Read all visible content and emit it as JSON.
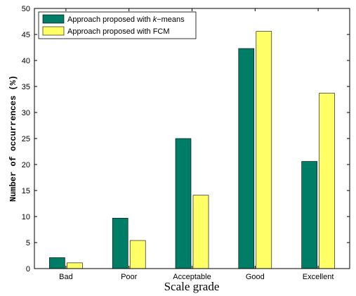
{
  "chart_data": {
    "type": "bar",
    "categories": [
      "Bad",
      "Poor",
      "Acceptable",
      "Good",
      "Excellent"
    ],
    "series": [
      {
        "name_prefix": "Approach proposed with ",
        "name_var": "k",
        "name_suffix": "−means",
        "color": "#007d66",
        "values": [
          2.1,
          9.7,
          25.0,
          42.3,
          20.6
        ]
      },
      {
        "name": "Approach proposed with FCM",
        "color": "#ffff66",
        "values": [
          1.1,
          5.4,
          14.1,
          45.6,
          33.7
        ]
      }
    ],
    "xlabel": "Scale grade",
    "ylabel": "Number of occurrences (%)",
    "ylim": [
      0,
      50
    ],
    "yticks": [
      0,
      5,
      10,
      15,
      20,
      25,
      30,
      35,
      40,
      45,
      50
    ],
    "grid": false,
    "legend_position": "top-left"
  }
}
